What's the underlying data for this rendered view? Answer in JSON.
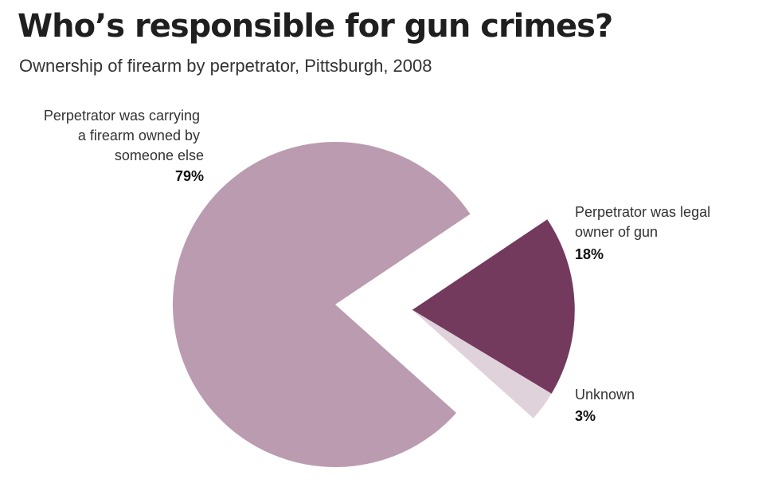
{
  "title": "Who’s responsible for gun crimes?",
  "subtitle": "Ownership of firearm by perpetrator, Pittsburgh, 2008",
  "chart_data": {
    "type": "pie",
    "title": "Who’s responsible for gun crimes?",
    "subtitle": "Ownership of firearm by perpetrator, Pittsburgh, 2008",
    "slices": [
      {
        "label_lines": [
          "Perpetrator was carrying",
          "a firearm owned by",
          "someone else"
        ],
        "value": 79,
        "value_label": "79%",
        "color": "#bb9bb0",
        "exploded": false
      },
      {
        "label_lines": [
          "Perpetrator was legal",
          "owner of gun"
        ],
        "value": 18,
        "value_label": "18%",
        "color": "#733a5e",
        "exploded": true
      },
      {
        "label_lines": [
          "Unknown"
        ],
        "value": 3,
        "value_label": "3%",
        "color": "#e0d2da",
        "exploded": true
      }
    ]
  }
}
